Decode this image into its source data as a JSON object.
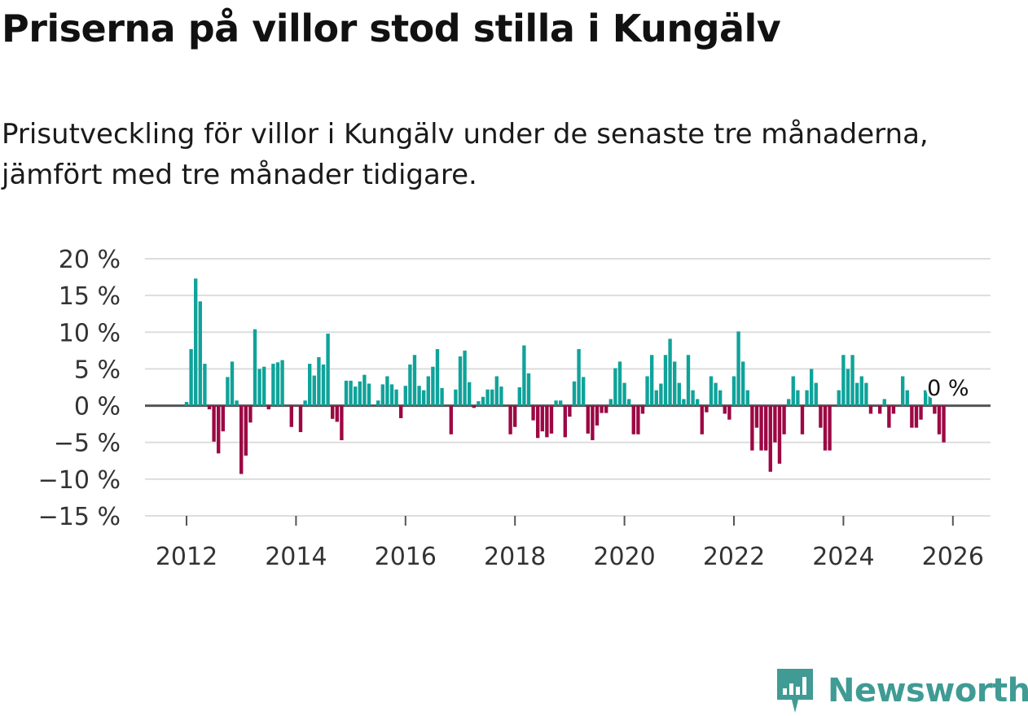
{
  "title": "Priserna på villor stod stilla i Kungälv",
  "subtitle": "Prisutveckling för villor i Kungälv under de senaste tre månaderna, jämfört med tre månader tidigare.",
  "brand": {
    "name": "Newsworthy",
    "color": "#3f9b94",
    "icon": "newsworthy-logo-icon"
  },
  "colors": {
    "positive": "#0fa39a",
    "negative": "#9c0844",
    "grid": "#dddddd",
    "axis": "#555555"
  },
  "chart_data": {
    "type": "bar",
    "title": "Priserna på villor stod stilla i Kungälv",
    "xlabel": "",
    "ylabel": "",
    "ylim": [
      -15,
      20
    ],
    "yticks": [
      20,
      15,
      10,
      5,
      0,
      -5,
      -10,
      -15
    ],
    "ytick_labels": [
      "20 %",
      "15 %",
      "10 %",
      "5 %",
      "0 %",
      "−5 %",
      "−10 %",
      "−15 %"
    ],
    "xticks": [
      2012,
      2014,
      2016,
      2018,
      2020,
      2022,
      2024,
      2026
    ],
    "xtick_labels": [
      "2012",
      "2014",
      "2016",
      "2018",
      "2020",
      "2022",
      "2024",
      "2026"
    ],
    "x_start": 2012.0,
    "step_years": 0.08333,
    "values": [
      0.5,
      7.7,
      17.3,
      14.2,
      5.7,
      -0.5,
      -4.9,
      -6.5,
      -3.5,
      3.9,
      6.0,
      0.7,
      -9.3,
      -6.8,
      -2.3,
      10.4,
      5.0,
      5.3,
      -0.5,
      5.7,
      5.9,
      6.2,
      0,
      -2.9,
      0,
      -3.6,
      0.7,
      5.7,
      4.1,
      6.6,
      5.6,
      9.8,
      -1.8,
      -2.2,
      -4.7,
      3.4,
      3.4,
      2.6,
      3.3,
      4.2,
      3.0,
      0,
      0.7,
      2.9,
      4.0,
      2.9,
      2.2,
      -1.7,
      2.7,
      5.6,
      6.9,
      2.7,
      2.1,
      4.0,
      5.3,
      7.7,
      2.4,
      0,
      -3.9,
      2.2,
      6.7,
      7.5,
      3.2,
      -0.3,
      0.6,
      1.2,
      2.2,
      2.2,
      4.0,
      2.6,
      0,
      -3.9,
      -2.9,
      2.5,
      8.2,
      4.4,
      -2.0,
      -4.4,
      -3.5,
      -4.3,
      -3.8,
      0.7,
      0.7,
      -4.3,
      -1.5,
      3.3,
      7.7,
      3.9,
      -3.8,
      -4.7,
      -2.7,
      -1.0,
      -1.0,
      0.9,
      5.1,
      6.0,
      3.1,
      0.9,
      -3.9,
      -3.9,
      -1.1,
      4.0,
      6.9,
      2.1,
      3.0,
      6.9,
      9.1,
      6.0,
      3.1,
      0.9,
      6.9,
      2.1,
      0.9,
      -3.9,
      -0.9,
      4.0,
      3.1,
      2.1,
      -1.1,
      -1.9,
      4.0,
      10.1,
      6.0,
      2.1,
      -6.1,
      -3.0,
      -6.1,
      -6.1,
      -9.0,
      -5.0,
      -7.9,
      -3.9,
      0.9,
      4.0,
      2.1,
      -3.9,
      2.1,
      5.0,
      3.1,
      -3.0,
      -6.1,
      -6.1,
      0,
      2.1,
      6.9,
      5.0,
      6.9,
      3.1,
      4.0,
      3.1,
      -1.1,
      0,
      -1.1,
      0.9,
      -3.0,
      -1.1,
      0,
      4.0,
      2.1,
      -3.0,
      -3.0,
      -1.9,
      2.1,
      1.5,
      -1.1,
      -3.9,
      -5.0,
      0
    ],
    "last_label": "0 %"
  }
}
